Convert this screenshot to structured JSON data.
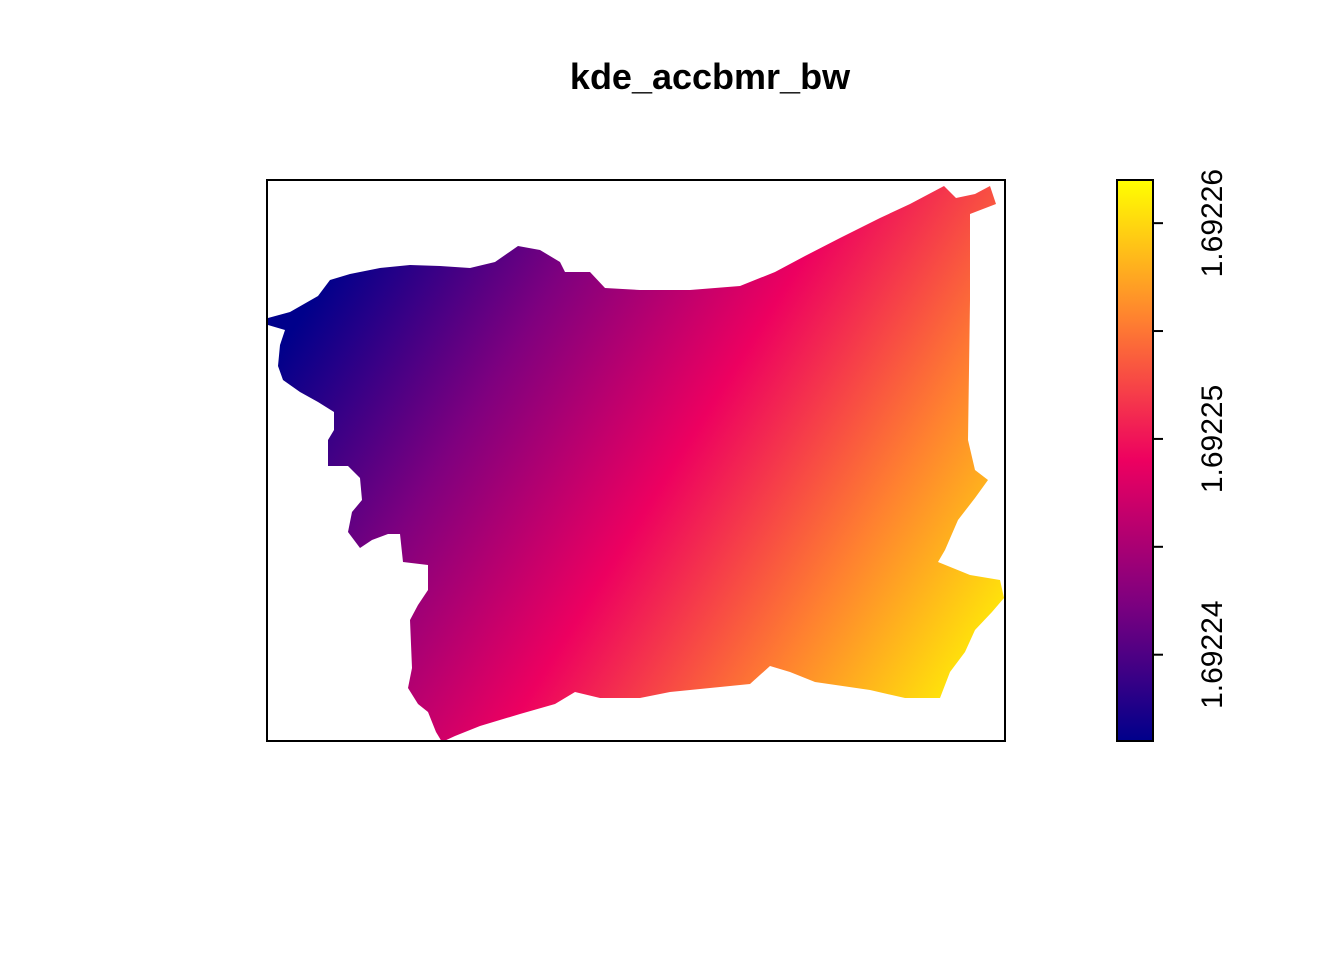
{
  "chart_data": {
    "type": "heatmap",
    "title": "kde_accbmr_bw",
    "xlabel": "",
    "ylabel": "",
    "axes_drawn": false,
    "value_range": [
      1.692236,
      1.692262
    ],
    "gradient": {
      "direction": "increases toward the lower-right",
      "low_value_region": "upper-left",
      "high_value_region": "lower-right"
    },
    "legend": {
      "position": "right",
      "orientation": "vertical",
      "tick_values": [
        1.69224,
        1.692245,
        1.69225,
        1.692255,
        1.69226
      ],
      "tick_labels": [
        "1.69224",
        "",
        "1.69225",
        "",
        "1.69226"
      ]
    },
    "palette": [
      "#00008b",
      "#7f007f",
      "#ed0060",
      "#ff8030",
      "#ffff00"
    ]
  }
}
